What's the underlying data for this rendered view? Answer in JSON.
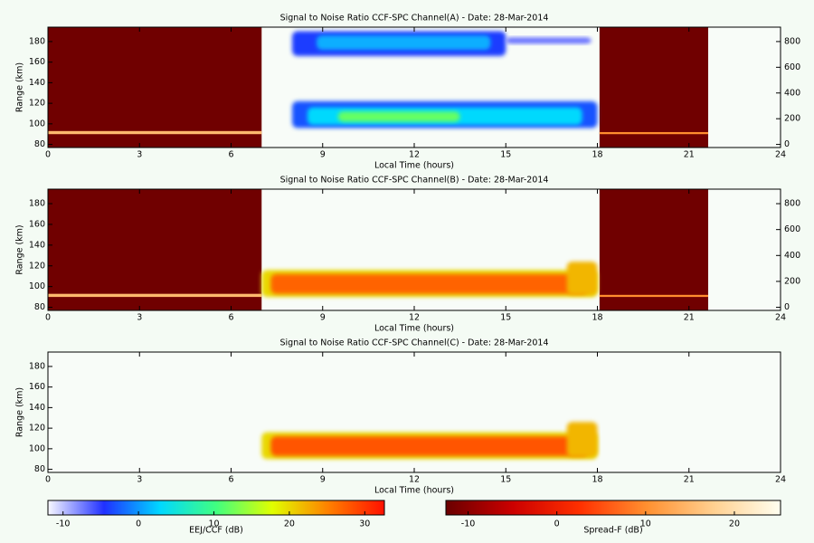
{
  "chart_data": [
    {
      "type": "heatmap",
      "title": "Signal to Noise Ratio CCF-SPC Channel(A) - Date: 28-Mar-2014",
      "xlabel": "Local Time (hours)",
      "ylabel": "Range (km)",
      "xlim": [
        0,
        24
      ],
      "xticks": [
        0,
        3,
        6,
        9,
        12,
        15,
        18,
        21,
        24
      ],
      "ylim": [
        77,
        194
      ],
      "yticks": [
        80,
        100,
        120,
        140,
        160,
        180
      ],
      "y2lim": [
        -24,
        912
      ],
      "y2ticks": [
        0,
        200,
        400,
        600,
        800
      ],
      "spread_f": [
        {
          "x": [
            0,
            7
          ],
          "y": [
            77,
            194
          ],
          "value": -12
        },
        {
          "x": [
            18.07,
            21.63
          ],
          "y": [
            77,
            194
          ],
          "value": -12
        },
        {
          "x": [
            0,
            7
          ],
          "y": [
            90,
            93
          ],
          "value": 15
        },
        {
          "x": [
            18.07,
            21.63
          ],
          "y": [
            90,
            92
          ],
          "value": 10
        }
      ],
      "eej": [
        {
          "x": [
            8.0,
            15.0
          ],
          "y": [
            166,
            190
          ],
          "value": -4
        },
        {
          "x": [
            8.8,
            14.5
          ],
          "y": [
            172,
            186
          ],
          "value": 1
        },
        {
          "x": [
            15.0,
            17.8
          ],
          "y": [
            178,
            184
          ],
          "value": -7
        },
        {
          "x": [
            8.0,
            18.0
          ],
          "y": [
            96,
            122
          ],
          "value": -3
        },
        {
          "x": [
            8.5,
            17.5
          ],
          "y": [
            99,
            116
          ],
          "value": 3
        },
        {
          "x": [
            9.5,
            13.5
          ],
          "y": [
            102,
            112
          ],
          "value": 12
        }
      ]
    },
    {
      "type": "heatmap",
      "title": "Signal to Noise Ratio CCF-SPC Channel(B) - Date: 28-Mar-2014",
      "xlabel": "Local Time (hours)",
      "ylabel": "Range (km)",
      "xlim": [
        0,
        24
      ],
      "xticks": [
        0,
        3,
        6,
        9,
        12,
        15,
        18,
        21,
        24
      ],
      "ylim": [
        77,
        194
      ],
      "yticks": [
        80,
        100,
        120,
        140,
        160,
        180
      ],
      "y2lim": [
        -24,
        912
      ],
      "y2ticks": [
        0,
        200,
        400,
        600,
        800
      ],
      "spread_f": [
        {
          "x": [
            0,
            7
          ],
          "y": [
            77,
            194
          ],
          "value": -12
        },
        {
          "x": [
            18.07,
            21.63
          ],
          "y": [
            77,
            194
          ],
          "value": -12
        },
        {
          "x": [
            0,
            7
          ],
          "y": [
            90,
            93
          ],
          "value": 15
        },
        {
          "x": [
            18.07,
            21.63
          ],
          "y": [
            90,
            92
          ],
          "value": 10
        }
      ],
      "eej": [
        {
          "x": [
            7.0,
            18.0
          ],
          "y": [
            90,
            116
          ],
          "value": 20
        },
        {
          "x": [
            7.3,
            17.7
          ],
          "y": [
            93,
            112
          ],
          "value": 27
        },
        {
          "x": [
            17.0,
            18.0
          ],
          "y": [
            92,
            124
          ],
          "value": 22
        }
      ]
    },
    {
      "type": "heatmap",
      "title": "Signal to Noise Ratio CCF-SPC Channel(C) - Date: 28-Mar-2014",
      "xlabel": "Local Time (hours)",
      "ylabel": "Range (km)",
      "xlim": [
        0,
        24
      ],
      "xticks": [
        0,
        3,
        6,
        9,
        12,
        15,
        18,
        21,
        24
      ],
      "ylim": [
        77,
        194
      ],
      "yticks": [
        80,
        100,
        120,
        140,
        160,
        180
      ],
      "spread_f": [],
      "eej": [
        {
          "x": [
            7.0,
            18.0
          ],
          "y": [
            90,
            116
          ],
          "value": 20
        },
        {
          "x": [
            7.3,
            17.7
          ],
          "y": [
            93,
            112
          ],
          "value": 28
        },
        {
          "x": [
            17.0,
            18.0
          ],
          "y": [
            92,
            126
          ],
          "value": 22
        }
      ]
    }
  ],
  "colorbars": [
    {
      "label": "EEJ/CCF (dB)",
      "clim": [
        -12,
        32.6
      ],
      "ticks": [
        -10,
        0,
        10,
        20,
        30
      ],
      "colors": [
        "#f8f8ff",
        "#2030ff",
        "#00d8ff",
        "#40ff80",
        "#e0ff00",
        "#ff8000",
        "#ff1000"
      ]
    },
    {
      "label": "Spread-F (dB)",
      "clim": [
        -12.5,
        25.2
      ],
      "ticks": [
        -10,
        0,
        10,
        20
      ],
      "colors": [
        "#6a0000",
        "#cc0000",
        "#ff3000",
        "#ff9030",
        "#ffd090",
        "#fffff0"
      ]
    }
  ]
}
